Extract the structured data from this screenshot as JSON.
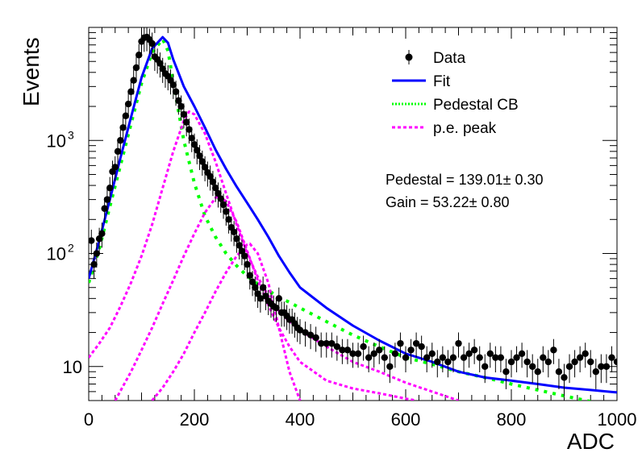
{
  "chart_data": {
    "type": "scatter",
    "title": "",
    "xlabel": "ADC",
    "ylabel": "Events",
    "xlim": [
      0,
      1000
    ],
    "ylim": [
      5,
      10000
    ],
    "y_scale": "log",
    "grid": false,
    "x_ticks": [
      0,
      200,
      400,
      600,
      800,
      1000
    ],
    "y_ticks": [
      {
        "value": 10,
        "label": "10"
      },
      {
        "value": 100,
        "label": "10",
        "exp": "2"
      },
      {
        "value": 1000,
        "label": "10",
        "exp": "3"
      }
    ],
    "legend_position": "top-right",
    "legend": [
      {
        "label": "Data",
        "style": "marker"
      },
      {
        "label": "Fit",
        "style": "solid"
      },
      {
        "label": "Pedestal CB",
        "style": "dotted"
      },
      {
        "label": "p.e. peak",
        "style": "dashed"
      }
    ],
    "annotations": [
      {
        "text": "Pedestal = 139.01± 0.30"
      },
      {
        "text": "Gain = 53.22± 0.80"
      }
    ],
    "colors": {
      "data": "#000000",
      "fit": "#0000ff",
      "pedestal": "#00ff00",
      "pe_peak": "#ff00ff",
      "axis": "#000000"
    },
    "series": [
      {
        "name": "Data",
        "kind": "points_with_errors",
        "x": [
          5,
          10,
          15,
          20,
          25,
          30,
          35,
          40,
          45,
          50,
          55,
          60,
          65,
          70,
          75,
          80,
          85,
          90,
          95,
          100,
          105,
          110,
          115,
          120,
          125,
          130,
          135,
          140,
          145,
          150,
          155,
          160,
          165,
          170,
          175,
          180,
          185,
          190,
          195,
          200,
          205,
          210,
          215,
          220,
          225,
          230,
          235,
          240,
          245,
          250,
          255,
          260,
          265,
          270,
          275,
          280,
          285,
          290,
          295,
          300,
          305,
          310,
          315,
          320,
          325,
          330,
          335,
          340,
          345,
          350,
          355,
          360,
          365,
          370,
          375,
          380,
          385,
          390,
          395,
          400,
          410,
          420,
          430,
          440,
          450,
          460,
          470,
          480,
          490,
          500,
          510,
          520,
          530,
          540,
          550,
          560,
          570,
          580,
          590,
          600,
          610,
          620,
          630,
          640,
          650,
          660,
          670,
          680,
          690,
          700,
          710,
          720,
          730,
          740,
          750,
          760,
          770,
          780,
          790,
          800,
          810,
          820,
          830,
          840,
          850,
          860,
          870,
          880,
          890,
          900,
          910,
          920,
          930,
          940,
          950,
          960,
          970,
          980,
          990,
          1000
        ],
        "y": [
          130,
          80,
          100,
          135,
          150,
          250,
          300,
          380,
          530,
          580,
          800,
          1000,
          1300,
          1650,
          2100,
          2700,
          3400,
          4400,
          5700,
          7500,
          8100,
          8200,
          7800,
          7200,
          5500,
          5200,
          4800,
          4300,
          3900,
          3700,
          3400,
          3100,
          2700,
          2250,
          2000,
          1700,
          1450,
          1250,
          1050,
          920,
          820,
          730,
          650,
          580,
          520,
          480,
          430,
          380,
          340,
          305,
          270,
          235,
          200,
          170,
          155,
          135,
          118,
          105,
          95,
          80,
          64,
          56,
          50,
          44,
          40,
          50,
          42,
          38,
          36,
          34,
          33,
          40,
          30,
          30,
          28,
          26,
          26,
          24,
          22,
          21,
          20,
          19,
          18,
          16,
          16,
          16,
          15,
          14,
          14,
          13,
          13,
          15,
          12,
          13,
          14,
          12,
          10,
          13,
          16,
          12,
          14,
          16,
          15,
          12,
          13,
          11,
          12,
          11,
          12,
          16,
          12,
          13,
          14,
          12,
          10,
          13,
          12,
          12,
          9,
          11,
          12,
          13,
          11,
          10,
          9,
          12,
          11,
          14,
          9,
          8,
          10,
          11,
          12,
          13,
          11,
          9,
          10,
          10,
          12,
          11
        ],
        "y_err_rel": 0.25
      },
      {
        "name": "Fit",
        "kind": "curve",
        "x": [
          0,
          20,
          40,
          60,
          80,
          100,
          120,
          140,
          150,
          160,
          180,
          200,
          220,
          240,
          260,
          280,
          300,
          320,
          340,
          360,
          380,
          400,
          450,
          500,
          550,
          600,
          650,
          700,
          750,
          800,
          850,
          900,
          950,
          1000
        ],
        "y": [
          60,
          130,
          300,
          700,
          1600,
          3600,
          6500,
          8200,
          7300,
          5200,
          3000,
          2000,
          1300,
          830,
          560,
          390,
          280,
          200,
          140,
          95,
          68,
          50,
          33,
          23,
          17,
          13,
          11,
          9,
          8,
          7.5,
          7,
          6.5,
          6.2,
          5.9
        ]
      },
      {
        "name": "Pedestal CB",
        "kind": "curve",
        "x": [
          0,
          20,
          40,
          60,
          80,
          100,
          120,
          140,
          150,
          160,
          180,
          200,
          220,
          240,
          260,
          280,
          300,
          320,
          340,
          360,
          380,
          400,
          450,
          500,
          550,
          600,
          650,
          700,
          750,
          800,
          850,
          900,
          950,
          1000
        ],
        "y": [
          55,
          110,
          260,
          600,
          1400,
          3200,
          6000,
          7900,
          6200,
          3300,
          1000,
          420,
          215,
          140,
          100,
          78,
          63,
          54,
          47,
          41,
          37,
          33,
          25,
          19,
          15,
          12,
          10.5,
          9,
          8,
          7,
          6.2,
          5.5,
          4.9,
          4.4
        ]
      },
      {
        "name": "p.e. peak 1",
        "kind": "curve",
        "x": [
          0,
          20,
          40,
          60,
          80,
          100,
          120,
          140,
          160,
          180,
          190,
          200,
          220,
          240,
          260,
          280,
          300,
          320,
          340,
          360,
          380,
          400,
          450,
          500,
          550,
          600,
          650,
          700
        ],
        "y": [
          12,
          16,
          22,
          34,
          55,
          95,
          180,
          380,
          800,
          1500,
          1800,
          1700,
          1150,
          650,
          340,
          180,
          100,
          62,
          42,
          31,
          25,
          21,
          15,
          11,
          9,
          7.2,
          6,
          5
        ]
      },
      {
        "name": "p.e. peak 2",
        "kind": "curve",
        "x": [
          50,
          80,
          100,
          120,
          140,
          160,
          180,
          200,
          220,
          240,
          245,
          260,
          280,
          300,
          320,
          340,
          360,
          380,
          400,
          450,
          500,
          550,
          600,
          620
        ],
        "y": [
          5,
          9,
          14,
          22,
          36,
          58,
          95,
          150,
          230,
          310,
          325,
          290,
          190,
          105,
          58,
          35,
          22,
          15,
          11,
          7.5,
          6.4,
          5.8,
          5.2,
          5
        ]
      },
      {
        "name": "p.e. peak 3",
        "kind": "curve",
        "x": [
          120,
          140,
          160,
          180,
          200,
          220,
          240,
          260,
          280,
          300,
          305,
          320,
          340,
          360,
          380,
          400
        ],
        "y": [
          5,
          6.5,
          9,
          13,
          20,
          30,
          46,
          68,
          95,
          120,
          122,
          100,
          55,
          22,
          9,
          5
        ]
      }
    ]
  }
}
